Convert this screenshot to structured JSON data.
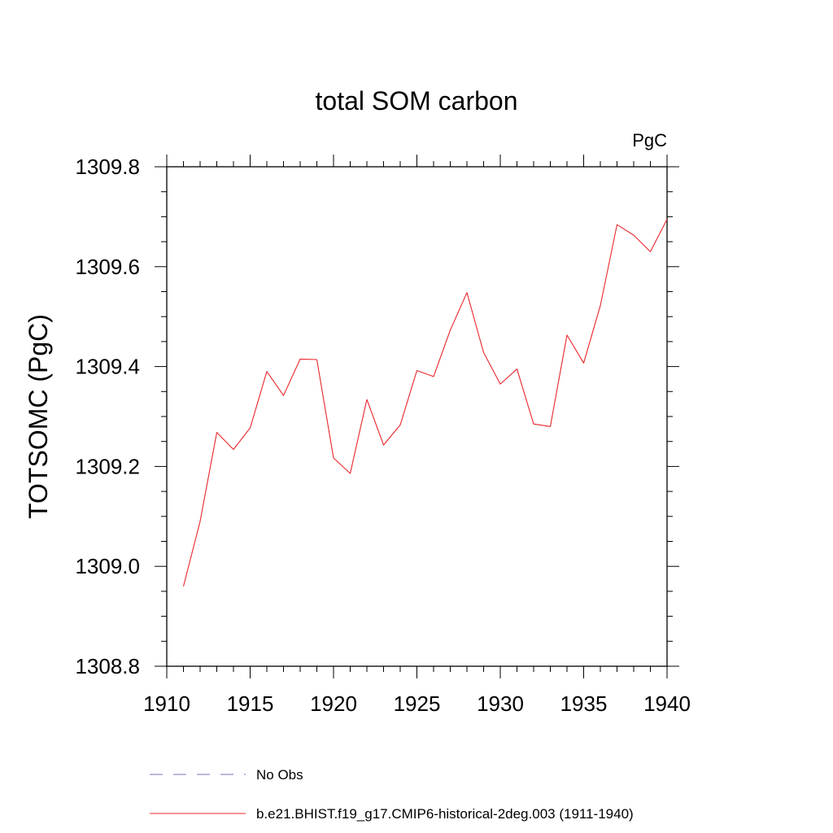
{
  "chart_data": {
    "type": "line",
    "title": "total SOM carbon",
    "units_label": "PgC",
    "xlabel": "",
    "ylabel": "TOTSOMC  (PgC)",
    "xlim": [
      1910,
      1940
    ],
    "ylim": [
      1308.8,
      1309.8
    ],
    "x_ticks": [
      1910,
      1915,
      1920,
      1925,
      1930,
      1935,
      1940
    ],
    "x_tick_labels": [
      "1910",
      "1915",
      "1920",
      "1925",
      "1930",
      "1935",
      "1940"
    ],
    "y_ticks": [
      1308.8,
      1309.0,
      1309.2,
      1309.4,
      1309.6,
      1309.8
    ],
    "y_tick_labels": [
      "1308.8",
      "1309.0",
      "1309.2",
      "1309.4",
      "1309.6",
      "1309.8"
    ],
    "grid": false,
    "legend_position": "bottom",
    "series": [
      {
        "name": "b.e21.BHIST.f19_g17.CMIP6-historical-2deg.003 (1911-1940)",
        "color": "#e8262c",
        "style": "solid",
        "x": [
          1911,
          1912,
          1913,
          1914,
          1915,
          1916,
          1917,
          1918,
          1919,
          1920,
          1921,
          1922,
          1923,
          1924,
          1925,
          1926,
          1927,
          1928,
          1929,
          1930,
          1931,
          1932,
          1933,
          1934,
          1935,
          1936,
          1937,
          1938,
          1939,
          1940
        ],
        "y": [
          1308.96,
          1309.09,
          1309.268,
          1309.234,
          1309.277,
          1309.39,
          1309.342,
          1309.415,
          1309.414,
          1309.217,
          1309.186,
          1309.334,
          1309.243,
          1309.283,
          1309.392,
          1309.38,
          1309.473,
          1309.548,
          1309.428,
          1309.365,
          1309.395,
          1309.285,
          1309.28,
          1309.463,
          1309.407,
          1309.522,
          1309.684,
          1309.663,
          1309.63,
          1309.695
        ]
      }
    ],
    "legend": [
      {
        "label": "No Obs",
        "color": "#7b6fc2",
        "style": "dashed"
      },
      {
        "label": "b.e21.BHIST.f19_g17.CMIP6-historical-2deg.003 (1911-1940)",
        "color": "#e8262c",
        "style": "solid"
      }
    ]
  }
}
